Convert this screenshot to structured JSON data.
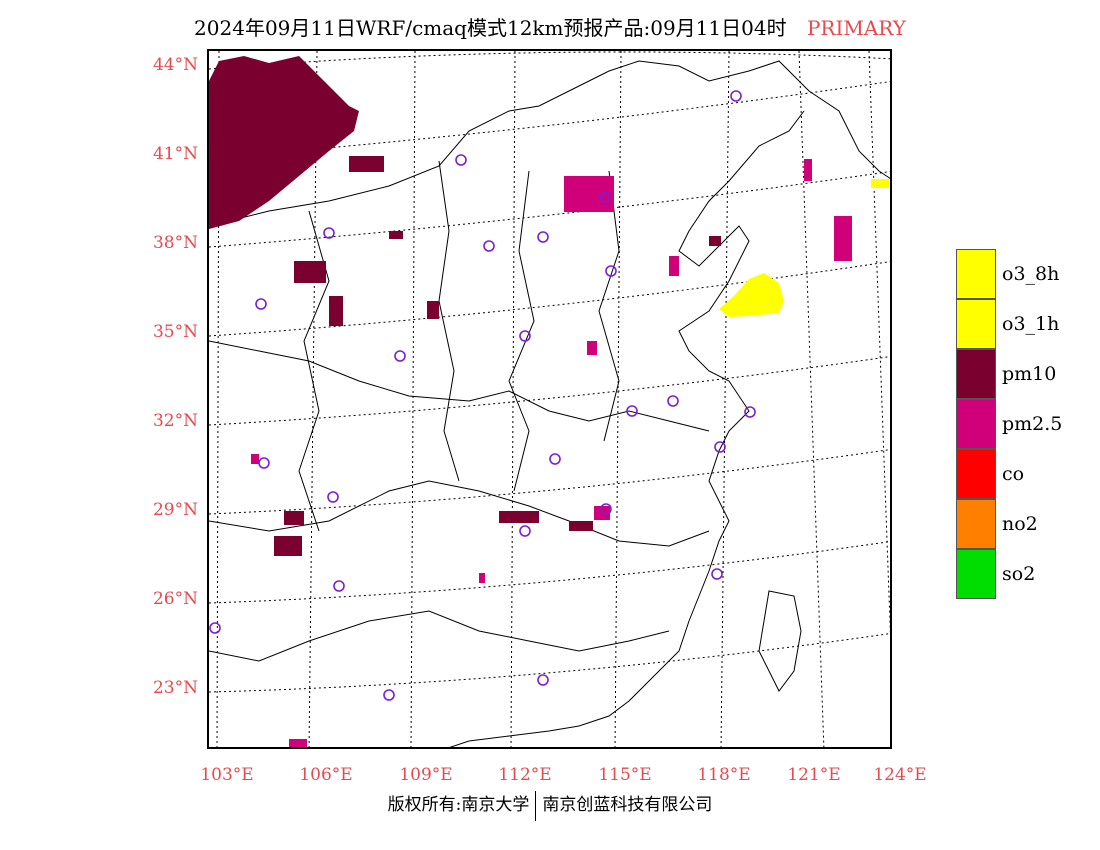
{
  "title": {
    "main": "2024年09月11日WRF/cmaq模式12km预报产品:09月11日04时",
    "tag": "PRIMARY",
    "tag_color": "#e8494f"
  },
  "axes": {
    "label_color": "#e8494f",
    "latitude_labels": [
      "44°N",
      "41°N",
      "38°N",
      "35°N",
      "32°N",
      "29°N",
      "26°N",
      "23°N"
    ],
    "longitude_labels": [
      "103°E",
      "106°E",
      "109°E",
      "112°E",
      "115°E",
      "118°E",
      "121°E",
      "124°E"
    ]
  },
  "legend": [
    {
      "label": "o3_8h",
      "color": "#ffff00"
    },
    {
      "label": "o3_1h",
      "color": "#ffff00"
    },
    {
      "label": "pm10",
      "color": "#7a0030"
    },
    {
      "label": "pm2.5",
      "color": "#d0007a"
    },
    {
      "label": "co",
      "color": "#ff0000"
    },
    {
      "label": "no2",
      "color": "#ff8000"
    },
    {
      "label": "so2",
      "color": "#00dd00"
    }
  ],
  "footer": {
    "left": "版权所有:南京大学",
    "right": "南京创蓝科技有限公司"
  },
  "station_marker_color": "#7a1fd6"
}
